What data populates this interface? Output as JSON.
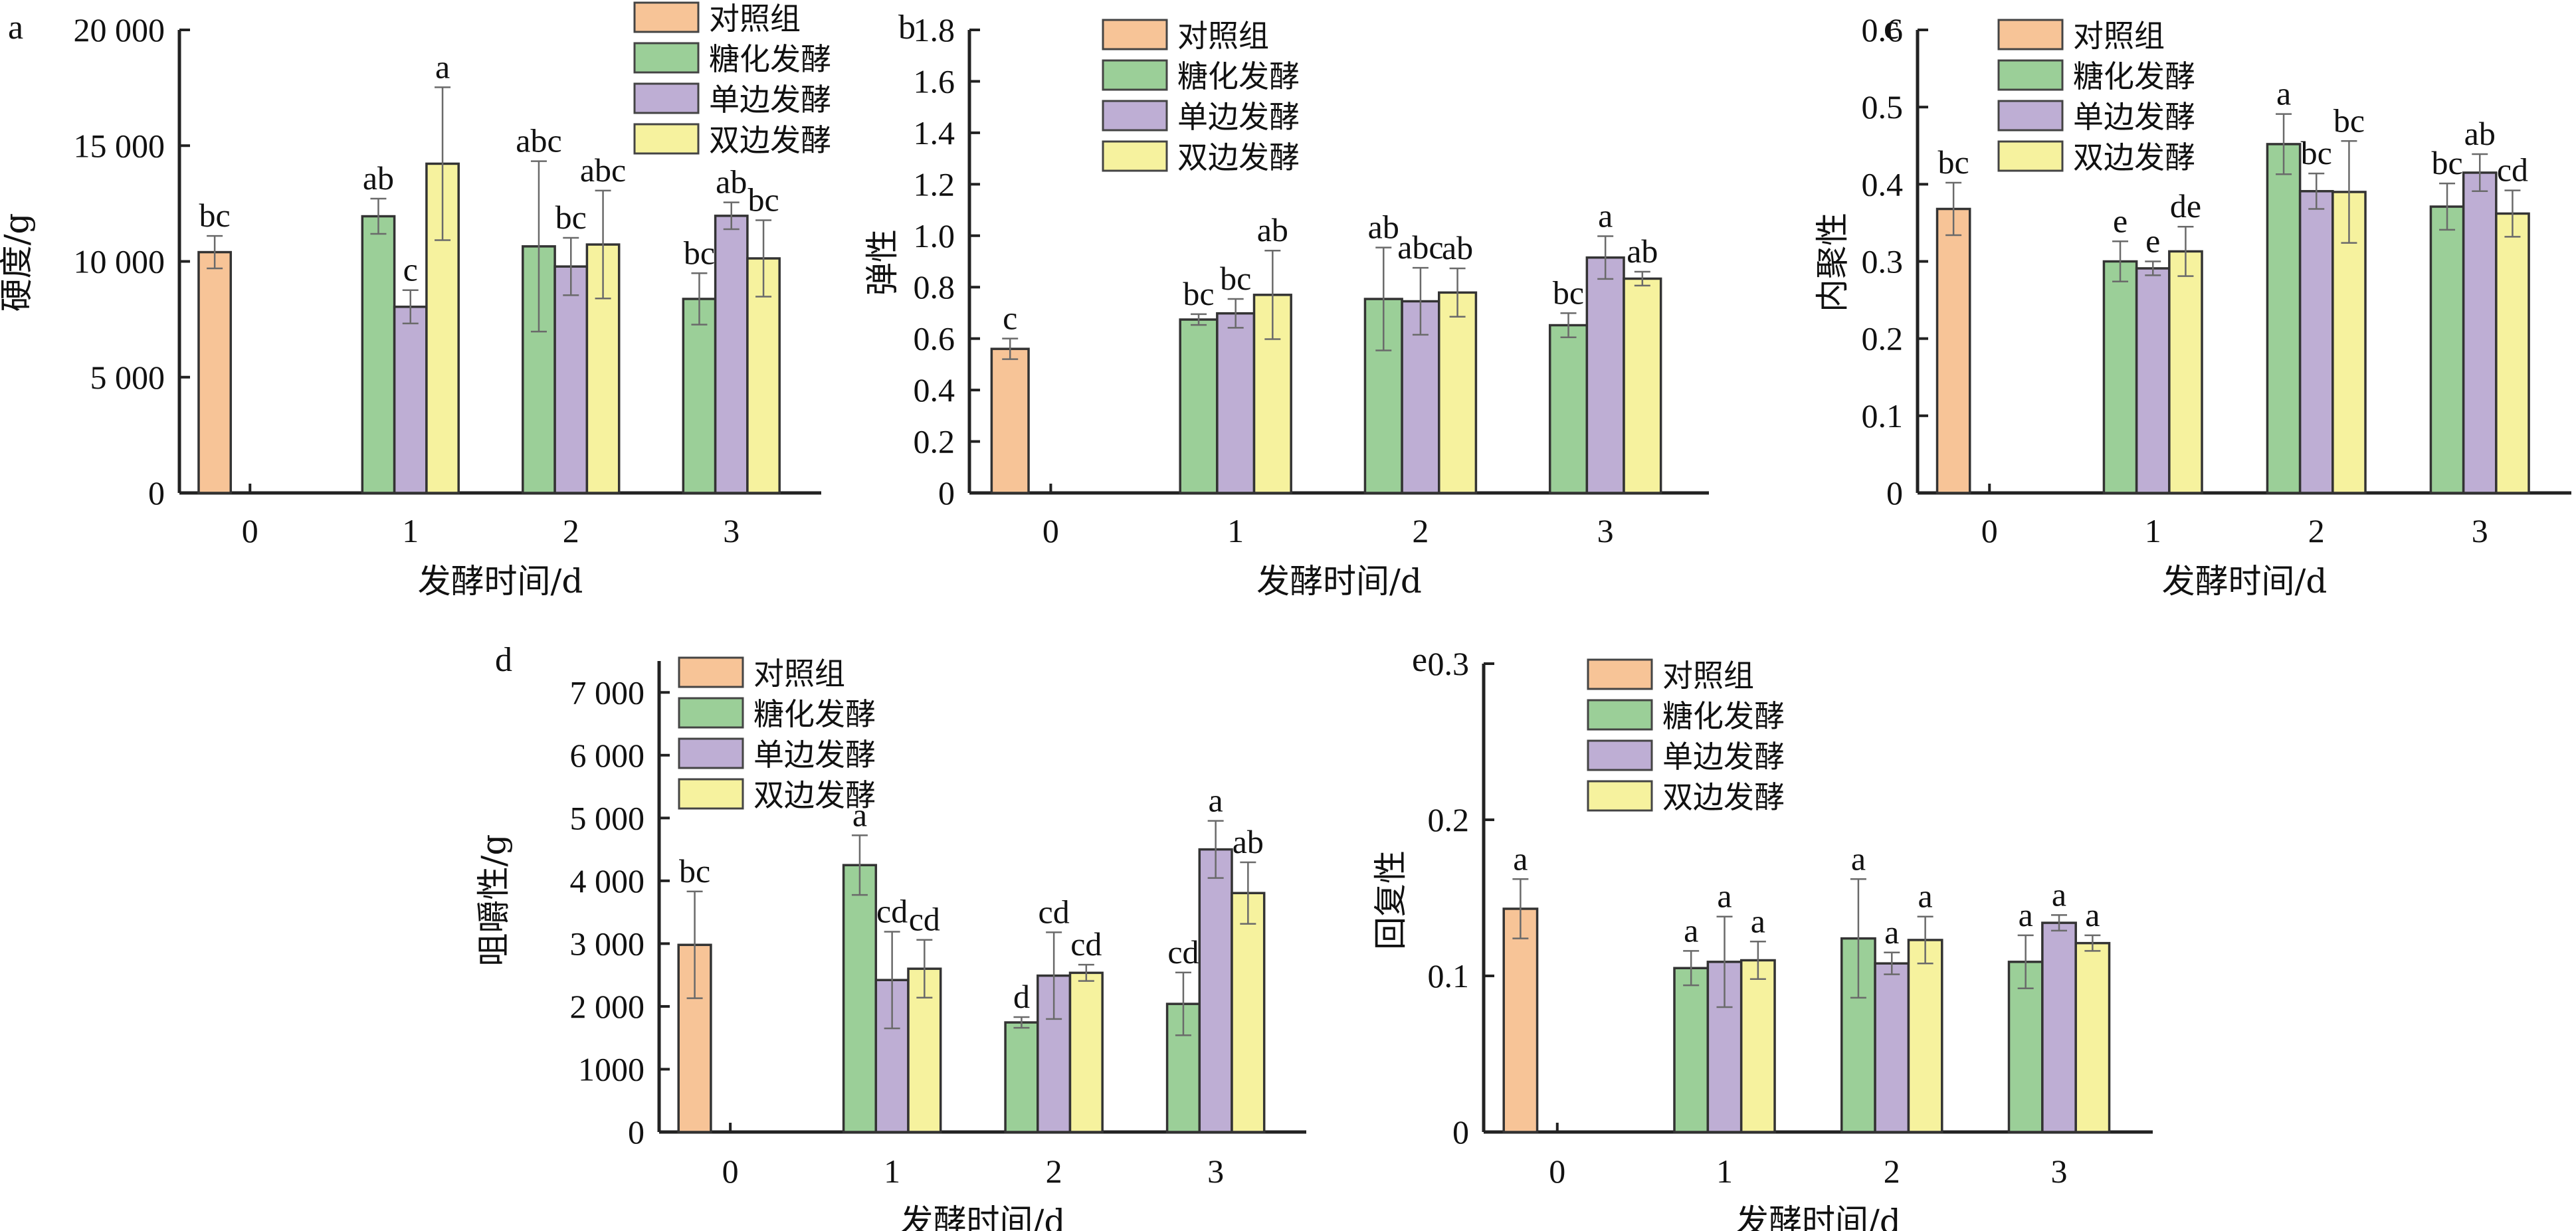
{
  "legend": [
    {
      "key": "control",
      "label": "对照组",
      "color": "#F7C497"
    },
    {
      "key": "saccharification",
      "label": "糖化发酵",
      "color": "#9BCF98"
    },
    {
      "key": "single",
      "label": "单边发酵",
      "color": "#BEAED4"
    },
    {
      "key": "double",
      "label": "双边发酵",
      "color": "#F6F29E"
    }
  ],
  "chart_data": [
    {
      "panel": "a",
      "type": "bar",
      "title": "",
      "xlabel": "发酵时间/d",
      "ylabel": "硬度/g",
      "categories": [
        "0",
        "1",
        "2",
        "3"
      ],
      "ylim": [
        0,
        20000
      ],
      "yticks": [
        0,
        5000,
        10000,
        15000,
        20000
      ],
      "ytick_labels": [
        "0",
        "5 000",
        "10 000",
        "15 000",
        "20 000"
      ],
      "legend_position": "top-right",
      "grid": false,
      "series": [
        {
          "name": "对照组",
          "values": [
            10400,
            null,
            null,
            null
          ],
          "errors": [
            700,
            null,
            null,
            null
          ],
          "labels": [
            "bc",
            null,
            null,
            null
          ]
        },
        {
          "name": "糖化发酵",
          "values": [
            null,
            11950,
            10650,
            8380
          ],
          "errors": [
            null,
            760,
            3680,
            1110
          ],
          "labels": [
            null,
            "ab",
            "abc",
            "bc"
          ]
        },
        {
          "name": "单边发酵",
          "values": [
            null,
            8040,
            9780,
            11970
          ],
          "errors": [
            null,
            720,
            1240,
            580
          ],
          "labels": [
            null,
            "c",
            "bc",
            "ab"
          ]
        },
        {
          "name": "双边发酵",
          "values": [
            null,
            14220,
            10730,
            10130
          ],
          "errors": [
            null,
            3300,
            2330,
            1650
          ],
          "labels": [
            null,
            "a",
            "abc",
            "bc"
          ]
        }
      ]
    },
    {
      "panel": "b",
      "type": "bar",
      "title": "",
      "xlabel": "发酵时间/d",
      "ylabel": "弹性",
      "categories": [
        "0",
        "1",
        "2",
        "3"
      ],
      "ylim": [
        0,
        1.8
      ],
      "yticks": [
        0,
        0.2,
        0.4,
        0.6,
        0.8,
        1.0,
        1.2,
        1.4,
        1.6,
        1.8
      ],
      "ytick_labels": [
        "0",
        "0.2",
        "0.4",
        "0.6",
        "0.8",
        "1.0",
        "1.2",
        "1.4",
        "1.6",
        "1.8"
      ],
      "legend_position": "top-left",
      "grid": false,
      "series": [
        {
          "name": "对照组",
          "values": [
            0.56,
            null,
            null,
            null
          ],
          "errors": [
            0.04,
            null,
            null,
            null
          ],
          "labels": [
            "c",
            null,
            null,
            null
          ]
        },
        {
          "name": "糖化发酵",
          "values": [
            null,
            0.674,
            0.754,
            0.652
          ],
          "errors": [
            null,
            0.021,
            0.2,
            0.047
          ],
          "labels": [
            null,
            "bc",
            "ab",
            "bc"
          ]
        },
        {
          "name": "单边发酵",
          "values": [
            null,
            0.698,
            0.745,
            0.915
          ],
          "errors": [
            null,
            0.056,
            0.13,
            0.083
          ],
          "labels": [
            null,
            "bc",
            "abc",
            "a"
          ]
        },
        {
          "name": "双边发酵",
          "values": [
            null,
            0.77,
            0.779,
            0.833
          ],
          "errors": [
            null,
            0.172,
            0.094,
            0.027
          ],
          "labels": [
            null,
            "ab",
            "ab",
            "ab"
          ]
        }
      ]
    },
    {
      "panel": "c",
      "type": "bar",
      "title": "",
      "xlabel": "发酵时间/d",
      "ylabel": "内聚性",
      "categories": [
        "0",
        "1",
        "2",
        "3"
      ],
      "ylim": [
        0,
        0.6
      ],
      "yticks": [
        0,
        0.1,
        0.2,
        0.3,
        0.4,
        0.5,
        0.6
      ],
      "ytick_labels": [
        "0",
        "0.1",
        "0.2",
        "0.3",
        "0.4",
        "0.5",
        "0.6"
      ],
      "legend_position": "top-left",
      "grid": false,
      "series": [
        {
          "name": "对照组",
          "values": [
            0.368,
            null,
            null,
            null
          ],
          "errors": [
            0.034,
            null,
            null,
            null
          ],
          "labels": [
            "bc",
            null,
            null,
            null
          ]
        },
        {
          "name": "糖化发酵",
          "values": [
            null,
            0.3,
            0.452,
            0.371
          ],
          "errors": [
            null,
            0.026,
            0.039,
            0.03
          ],
          "labels": [
            null,
            "e",
            "a",
            "bc"
          ]
        },
        {
          "name": "单边发酵",
          "values": [
            null,
            0.291,
            0.391,
            0.415
          ],
          "errors": [
            null,
            0.009,
            0.023,
            0.024
          ],
          "labels": [
            null,
            "e",
            "bc",
            "ab"
          ]
        },
        {
          "name": "双边发酵",
          "values": [
            null,
            0.313,
            0.39,
            0.362
          ],
          "errors": [
            null,
            0.032,
            0.066,
            0.03
          ],
          "labels": [
            null,
            "de",
            "bc",
            "cd"
          ]
        }
      ]
    },
    {
      "panel": "d",
      "type": "bar",
      "title": "",
      "xlabel": "发酵时间/d",
      "ylabel": "咀嚼性/g",
      "categories": [
        "0",
        "1",
        "2",
        "3"
      ],
      "ylim": [
        0,
        7500
      ],
      "yticks": [
        0,
        1000,
        2000,
        3000,
        4000,
        5000,
        6000,
        7000
      ],
      "ytick_labels": [
        "0",
        "1000",
        "2 000",
        "3 000",
        "4 000",
        "5 000",
        "6 000",
        "7 000"
      ],
      "legend_position": "top-left",
      "grid": false,
      "series": [
        {
          "name": "对照组",
          "values": [
            2980,
            null,
            null,
            null
          ],
          "errors": [
            850,
            null,
            null,
            null
          ],
          "labels": [
            "bc",
            null,
            null,
            null
          ]
        },
        {
          "name": "糖化发酵",
          "values": [
            null,
            4250,
            1745,
            2040
          ],
          "errors": [
            null,
            475,
            85,
            500
          ],
          "labels": [
            null,
            "a",
            "d",
            "cd"
          ]
        },
        {
          "name": "单边发酵",
          "values": [
            null,
            2420,
            2490,
            4500
          ],
          "errors": [
            null,
            770,
            690,
            455
          ],
          "labels": [
            null,
            "cd",
            "cd",
            "a"
          ]
        },
        {
          "name": "双边发酵",
          "values": [
            null,
            2600,
            2535,
            3805
          ],
          "errors": [
            null,
            460,
            130,
            490
          ],
          "labels": [
            null,
            "cd",
            "cd",
            "ab"
          ]
        }
      ]
    },
    {
      "panel": "e",
      "type": "bar",
      "title": "",
      "xlabel": "发酵时间/d",
      "ylabel": "回复性",
      "categories": [
        "0",
        "1",
        "2",
        "3"
      ],
      "ylim": [
        0,
        0.3
      ],
      "yticks": [
        0,
        0.1,
        0.2,
        0.3
      ],
      "ytick_labels": [
        "0",
        "0.1",
        "0.2",
        "0.3"
      ],
      "legend_position": "top-left",
      "grid": false,
      "series": [
        {
          "name": "对照组",
          "values": [
            0.143,
            null,
            null,
            null
          ],
          "errors": [
            0.019,
            null,
            null,
            null
          ],
          "labels": [
            "a",
            null,
            null,
            null
          ]
        },
        {
          "name": "糖化发酵",
          "values": [
            null,
            0.105,
            0.124,
            0.109
          ],
          "errors": [
            null,
            0.011,
            0.038,
            0.017
          ],
          "labels": [
            null,
            "a",
            "a",
            "a"
          ]
        },
        {
          "name": "单边发酵",
          "values": [
            null,
            0.109,
            0.108,
            0.134
          ],
          "errors": [
            null,
            0.029,
            0.007,
            0.005
          ],
          "labels": [
            null,
            "a",
            "a",
            "a"
          ]
        },
        {
          "name": "双边发酵",
          "values": [
            null,
            0.11,
            0.123,
            0.121
          ],
          "errors": [
            null,
            0.012,
            0.015,
            0.005
          ],
          "labels": [
            null,
            "a",
            "a",
            "a"
          ]
        }
      ]
    }
  ]
}
